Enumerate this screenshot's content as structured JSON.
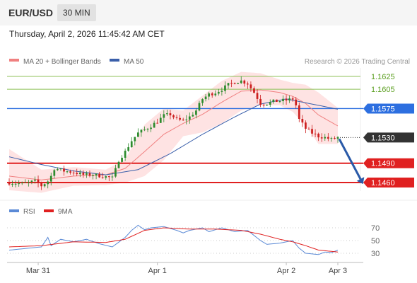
{
  "header": {
    "pair": "EUR/USD",
    "timeframe": "30 MIN"
  },
  "timestamp": "Thursday, April 2, 2026 11:45:42 AM CET",
  "legend": {
    "ma20_label": "MA 20 + Bollinger Bands",
    "ma50_label": "MA 50",
    "credit": "Research © 2026 Trading Central",
    "rsi_label": "RSI",
    "rsi_ma_label": "9MA"
  },
  "colors": {
    "bullish": "#2e8b2e",
    "bearish": "#cc1f1f",
    "ma20": "#f08080",
    "ma50": "#3a5faa",
    "band_fill": "#fdd9d9",
    "resistance": "#8fc25a",
    "support": "#e02020",
    "pivot": "#2d6fe0",
    "last_price": "#333333",
    "arrow": "#2a5aa8",
    "rsi": "#5b8ad6",
    "rsi_ma": "#e02020"
  },
  "chart_data": [
    {
      "type": "candlestick",
      "x_ticks": [
        "Mar 31",
        "Apr 1",
        "Apr 2",
        "Apr 3"
      ],
      "levels": [
        {
          "value": 1.1625,
          "label": "1.1625",
          "kind": "resistance"
        },
        {
          "value": 1.1605,
          "label": "1.1605",
          "kind": "resistance"
        },
        {
          "value": 1.1575,
          "label": "1.1575",
          "kind": "pivot"
        },
        {
          "value": 1.153,
          "label": "1.1530",
          "kind": "last"
        },
        {
          "value": 1.149,
          "label": "1.1490",
          "kind": "support"
        },
        {
          "value": 1.146,
          "label": "1.1460",
          "kind": "support"
        }
      ],
      "ohlc_waypoints": [
        [
          0,
          1.146
        ],
        [
          4,
          1.1458
        ],
        [
          8,
          1.1462
        ],
        [
          10,
          1.1455
        ],
        [
          12,
          1.1462
        ],
        [
          13,
          1.147
        ],
        [
          14,
          1.1482
        ],
        [
          17,
          1.1478
        ],
        [
          20,
          1.1476
        ],
        [
          23,
          1.1472
        ],
        [
          26,
          1.1472
        ],
        [
          29,
          1.147
        ],
        [
          32,
          1.1467
        ],
        [
          33,
          1.148
        ],
        [
          34,
          1.1495
        ],
        [
          36,
          1.1508
        ],
        [
          38,
          1.1525
        ],
        [
          40,
          1.1537
        ],
        [
          42,
          1.1542
        ],
        [
          44,
          1.1548
        ],
        [
          46,
          1.1555
        ],
        [
          48,
          1.1564
        ],
        [
          50,
          1.1566
        ],
        [
          52,
          1.1558
        ],
        [
          54,
          1.1556
        ],
        [
          56,
          1.1562
        ],
        [
          58,
          1.1572
        ],
        [
          60,
          1.159
        ],
        [
          62,
          1.1597
        ],
        [
          64,
          1.16
        ],
        [
          66,
          1.1605
        ],
        [
          68,
          1.1612
        ],
        [
          70,
          1.1616
        ],
        [
          72,
          1.1618
        ],
        [
          74,
          1.1614
        ],
        [
          76,
          1.16
        ],
        [
          78,
          1.1583
        ],
        [
          80,
          1.1583
        ],
        [
          82,
          1.1586
        ],
        [
          84,
          1.1587
        ],
        [
          86,
          1.1588
        ],
        [
          88,
          1.159
        ],
        [
          89,
          1.158
        ],
        [
          90,
          1.1558
        ],
        [
          92,
          1.1544
        ],
        [
          94,
          1.1537
        ],
        [
          96,
          1.1532
        ],
        [
          98,
          1.153
        ],
        [
          100,
          1.1527
        ],
        [
          102,
          1.153
        ]
      ],
      "ma20_waypoints": [
        [
          0,
          1.147
        ],
        [
          10,
          1.1464
        ],
        [
          20,
          1.147
        ],
        [
          30,
          1.1472
        ],
        [
          36,
          1.1482
        ],
        [
          42,
          1.1508
        ],
        [
          48,
          1.1535
        ],
        [
          54,
          1.1552
        ],
        [
          60,
          1.1566
        ],
        [
          66,
          1.1585
        ],
        [
          72,
          1.1602
        ],
        [
          78,
          1.1604
        ],
        [
          84,
          1.16
        ],
        [
          88,
          1.1594
        ],
        [
          92,
          1.1583
        ],
        [
          96,
          1.1565
        ],
        [
          102,
          1.1548
        ]
      ],
      "ma50_waypoints": [
        [
          0,
          1.15
        ],
        [
          10,
          1.1488
        ],
        [
          20,
          1.1478
        ],
        [
          30,
          1.1472
        ],
        [
          40,
          1.148
        ],
        [
          50,
          1.1505
        ],
        [
          60,
          1.1535
        ],
        [
          70,
          1.1562
        ],
        [
          78,
          1.1582
        ],
        [
          86,
          1.159
        ],
        [
          94,
          1.1582
        ],
        [
          102,
          1.1574
        ]
      ],
      "band_upper_waypoints": [
        [
          0,
          1.1512
        ],
        [
          10,
          1.148
        ],
        [
          20,
          1.1484
        ],
        [
          30,
          1.148
        ],
        [
          36,
          1.1496
        ],
        [
          42,
          1.155
        ],
        [
          48,
          1.1575
        ],
        [
          54,
          1.1572
        ],
        [
          60,
          1.1595
        ],
        [
          66,
          1.1618
        ],
        [
          72,
          1.1632
        ],
        [
          78,
          1.163
        ],
        [
          84,
          1.162
        ],
        [
          88,
          1.1615
        ],
        [
          92,
          1.1612
        ],
        [
          96,
          1.16
        ],
        [
          102,
          1.1576
        ]
      ],
      "band_lower_waypoints": [
        [
          0,
          1.1448
        ],
        [
          10,
          1.1444
        ],
        [
          20,
          1.1455
        ],
        [
          30,
          1.1456
        ],
        [
          36,
          1.146
        ],
        [
          42,
          1.147
        ],
        [
          48,
          1.1495
        ],
        [
          54,
          1.1532
        ],
        [
          60,
          1.1538
        ],
        [
          66,
          1.1552
        ],
        [
          72,
          1.1572
        ],
        [
          78,
          1.158
        ],
        [
          84,
          1.158
        ],
        [
          88,
          1.157
        ],
        [
          92,
          1.1548
        ],
        [
          96,
          1.152
        ],
        [
          102,
          1.152
        ]
      ],
      "projection": {
        "from": 1.153,
        "to": 1.146
      }
    },
    {
      "type": "line",
      "y_ticks": [
        70,
        50,
        30
      ],
      "rsi_waypoints": [
        [
          0,
          35
        ],
        [
          6,
          38
        ],
        [
          10,
          40
        ],
        [
          12,
          55
        ],
        [
          13,
          42
        ],
        [
          16,
          52
        ],
        [
          20,
          48
        ],
        [
          24,
          52
        ],
        [
          28,
          45
        ],
        [
          32,
          40
        ],
        [
          36,
          55
        ],
        [
          38,
          66
        ],
        [
          40,
          74
        ],
        [
          42,
          67
        ],
        [
          44,
          70
        ],
        [
          48,
          72
        ],
        [
          52,
          66
        ],
        [
          54,
          62
        ],
        [
          56,
          66
        ],
        [
          60,
          70
        ],
        [
          62,
          64
        ],
        [
          66,
          70
        ],
        [
          70,
          64
        ],
        [
          74,
          66
        ],
        [
          78,
          50
        ],
        [
          80,
          44
        ],
        [
          84,
          46
        ],
        [
          88,
          50
        ],
        [
          90,
          38
        ],
        [
          92,
          30
        ],
        [
          96,
          28
        ],
        [
          98,
          32
        ],
        [
          100,
          31
        ],
        [
          102,
          35
        ]
      ],
      "rsi_ma_waypoints": [
        [
          0,
          40
        ],
        [
          10,
          42
        ],
        [
          20,
          48
        ],
        [
          30,
          47
        ],
        [
          36,
          52
        ],
        [
          42,
          66
        ],
        [
          48,
          70
        ],
        [
          56,
          68
        ],
        [
          64,
          68
        ],
        [
          72,
          66
        ],
        [
          78,
          60
        ],
        [
          84,
          52
        ],
        [
          88,
          48
        ],
        [
          92,
          42
        ],
        [
          96,
          35
        ],
        [
          102,
          32
        ]
      ]
    }
  ]
}
